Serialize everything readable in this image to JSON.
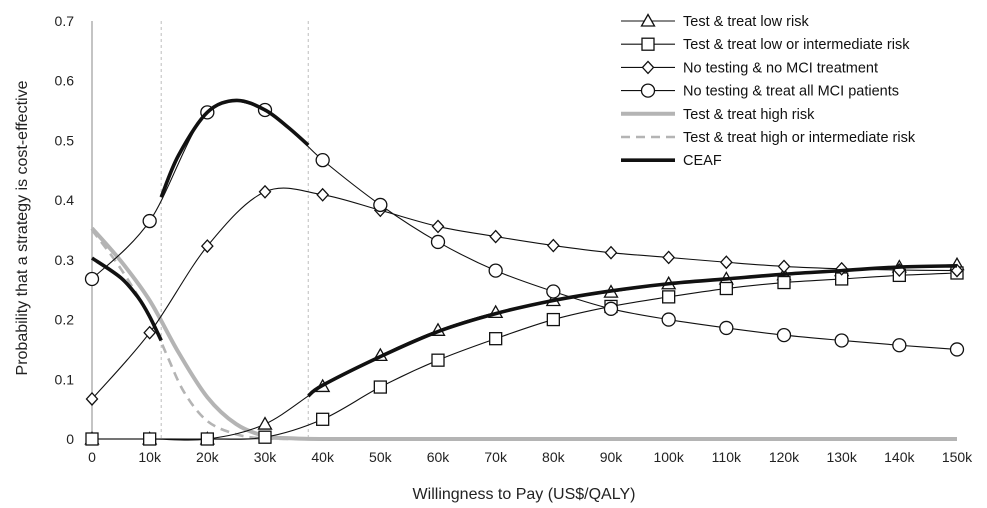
{
  "chart_data": {
    "type": "line",
    "xlabel": "Willingness to Pay (US$/QALY)",
    "ylabel": "Probability that a strategy is cost-effective",
    "xlim": [
      0,
      150000
    ],
    "ylim": [
      0,
      0.7
    ],
    "x_ticks": [
      0,
      10000,
      20000,
      30000,
      40000,
      50000,
      60000,
      70000,
      80000,
      90000,
      100000,
      110000,
      120000,
      130000,
      140000,
      150000
    ],
    "x_tick_labels": [
      "0",
      "10k",
      "20k",
      "30k",
      "40k",
      "50k",
      "60k",
      "70k",
      "80k",
      "90k",
      "100k",
      "110k",
      "120k",
      "130k",
      "140k",
      "150k"
    ],
    "y_ticks": [
      0,
      0.1,
      0.2,
      0.3,
      0.4,
      0.5,
      0.6,
      0.7
    ],
    "y_tick_labels": [
      "0",
      "0.1",
      "0.2",
      "0.3",
      "0.4",
      "0.5",
      "0.6",
      "0.7"
    ],
    "vlines": [
      12000,
      37500
    ],
    "grid": false,
    "legend_position": "top-right",
    "series": [
      {
        "name": "Test & treat low risk",
        "marker": "triangle",
        "style": "thin-black",
        "x": [
          0,
          10000,
          20000,
          30000,
          40000,
          50000,
          60000,
          70000,
          80000,
          90000,
          100000,
          110000,
          120000,
          130000,
          140000,
          150000
        ],
        "y": [
          0,
          0,
          0,
          0.025,
          0.088,
          0.14,
          0.182,
          0.212,
          0.232,
          0.246,
          0.26,
          0.268,
          0.275,
          0.282,
          0.288,
          0.292
        ]
      },
      {
        "name": "Test & treat low or intermediate risk",
        "marker": "square",
        "style": "thin-black",
        "x": [
          0,
          10000,
          20000,
          30000,
          40000,
          50000,
          60000,
          70000,
          80000,
          90000,
          100000,
          110000,
          120000,
          130000,
          140000,
          150000
        ],
        "y": [
          0,
          0,
          0,
          0.003,
          0.033,
          0.087,
          0.132,
          0.168,
          0.2,
          0.222,
          0.238,
          0.252,
          0.262,
          0.268,
          0.274,
          0.278
        ]
      },
      {
        "name": "No testing & no MCI treatment",
        "marker": "diamond",
        "style": "thin-black",
        "x": [
          0,
          10000,
          20000,
          30000,
          40000,
          50000,
          60000,
          70000,
          80000,
          90000,
          100000,
          110000,
          120000,
          130000,
          140000,
          150000
        ],
        "y": [
          0.067,
          0.178,
          0.323,
          0.414,
          0.409,
          0.383,
          0.356,
          0.339,
          0.324,
          0.312,
          0.304,
          0.296,
          0.289,
          0.285,
          0.283,
          0.282
        ]
      },
      {
        "name": "No testing & treat all MCI patients",
        "marker": "circle",
        "style": "thin-black",
        "x": [
          0,
          10000,
          20000,
          30000,
          40000,
          50000,
          60000,
          70000,
          80000,
          90000,
          100000,
          110000,
          120000,
          130000,
          140000,
          150000
        ],
        "y": [
          0.268,
          0.365,
          0.547,
          0.551,
          0.467,
          0.392,
          0.33,
          0.282,
          0.247,
          0.218,
          0.2,
          0.186,
          0.174,
          0.165,
          0.157,
          0.15
        ]
      },
      {
        "name": "Test & treat high risk",
        "marker": "none",
        "style": "thick-gray",
        "x": [
          0,
          5000,
          10000,
          15000,
          20000,
          25000,
          30000,
          35000,
          40000,
          50000,
          60000,
          70000,
          80000,
          90000,
          100000,
          110000,
          120000,
          130000,
          140000,
          150000
        ],
        "y": [
          0.353,
          0.298,
          0.232,
          0.145,
          0.07,
          0.025,
          0.005,
          0.001,
          0,
          0,
          0,
          0,
          0,
          0,
          0,
          0,
          0,
          0,
          0,
          0
        ]
      },
      {
        "name": "Test & treat high or intermediate risk",
        "marker": "none",
        "style": "dashed-gray",
        "x": [
          0,
          5000,
          10000,
          13000,
          16000,
          20000,
          25000,
          30000,
          40000,
          50000,
          60000,
          70000,
          80000,
          90000,
          100000,
          110000,
          120000,
          130000,
          140000,
          150000
        ],
        "y": [
          0.35,
          0.285,
          0.205,
          0.14,
          0.078,
          0.03,
          0.008,
          0.001,
          0,
          0,
          0,
          0,
          0,
          0,
          0,
          0,
          0,
          0,
          0,
          0
        ]
      },
      {
        "name": "CEAF",
        "marker": "none",
        "style": "thick-black",
        "segments": [
          {
            "x": [
              0,
              5000,
              8000,
              10000,
              12000
            ],
            "y": [
              0.303,
              0.27,
              0.237,
              0.205,
              0.165
            ]
          },
          {
            "x": [
              12000,
              15000,
              20000,
              25000,
              30000,
              34000,
              37500
            ],
            "y": [
              0.405,
              0.475,
              0.547,
              0.567,
              0.551,
              0.522,
              0.492
            ]
          },
          {
            "x": [
              37500,
              40000,
              50000,
              60000,
              70000,
              80000,
              90000,
              100000,
              110000,
              120000,
              130000,
              140000,
              150000
            ],
            "y": [
              0.072,
              0.09,
              0.138,
              0.18,
              0.21,
              0.232,
              0.248,
              0.26,
              0.268,
              0.276,
              0.282,
              0.288,
              0.29
            ]
          }
        ]
      }
    ]
  },
  "colors": {
    "black": "#111111",
    "gray": "#b4b4b4",
    "dashed_gray": "#b4b4b4",
    "vline": "#bdbdbd",
    "axis": "#b0b0b0"
  }
}
